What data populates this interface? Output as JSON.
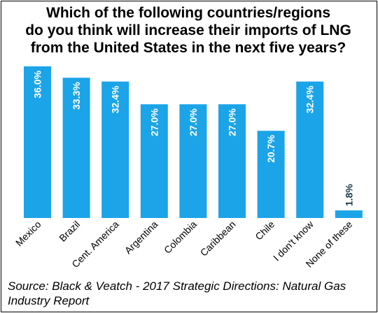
{
  "title_lines": [
    "Which of the following countries/regions",
    "do you think will increase their imports of LNG",
    "from the United States in the next five years?"
  ],
  "source_lines": [
    "Source: Black & Veatch - 2017 Strategic Directions: Natural Gas",
    "Industry Report"
  ],
  "colors": {
    "bar": "#1BA4E8",
    "bar_label_inside": "#ffffff",
    "bar_label_outside": "#1a3a4a",
    "frame": "#000000"
  },
  "chart_data": {
    "type": "bar",
    "title": "Which of the following countries/regions do you think will increase their imports of LNG from the United States in the next five years?",
    "categories": [
      "Mexico",
      "Brazil",
      "Cent. America",
      "Argentina",
      "Colombia",
      "Caribbean",
      "Chile",
      "I don't know",
      "None of these"
    ],
    "values": [
      36.0,
      33.3,
      32.4,
      27.0,
      27.0,
      27.0,
      20.7,
      32.4,
      1.8
    ],
    "value_labels": [
      "36.0%",
      "33.3%",
      "32.4%",
      "27.0%",
      "27.0%",
      "27.0%",
      "20.7%",
      "32.4%",
      "1.8%"
    ],
    "xlabel": "",
    "ylabel": "",
    "ylim": [
      0,
      36
    ],
    "grid": false,
    "legend": "none"
  }
}
